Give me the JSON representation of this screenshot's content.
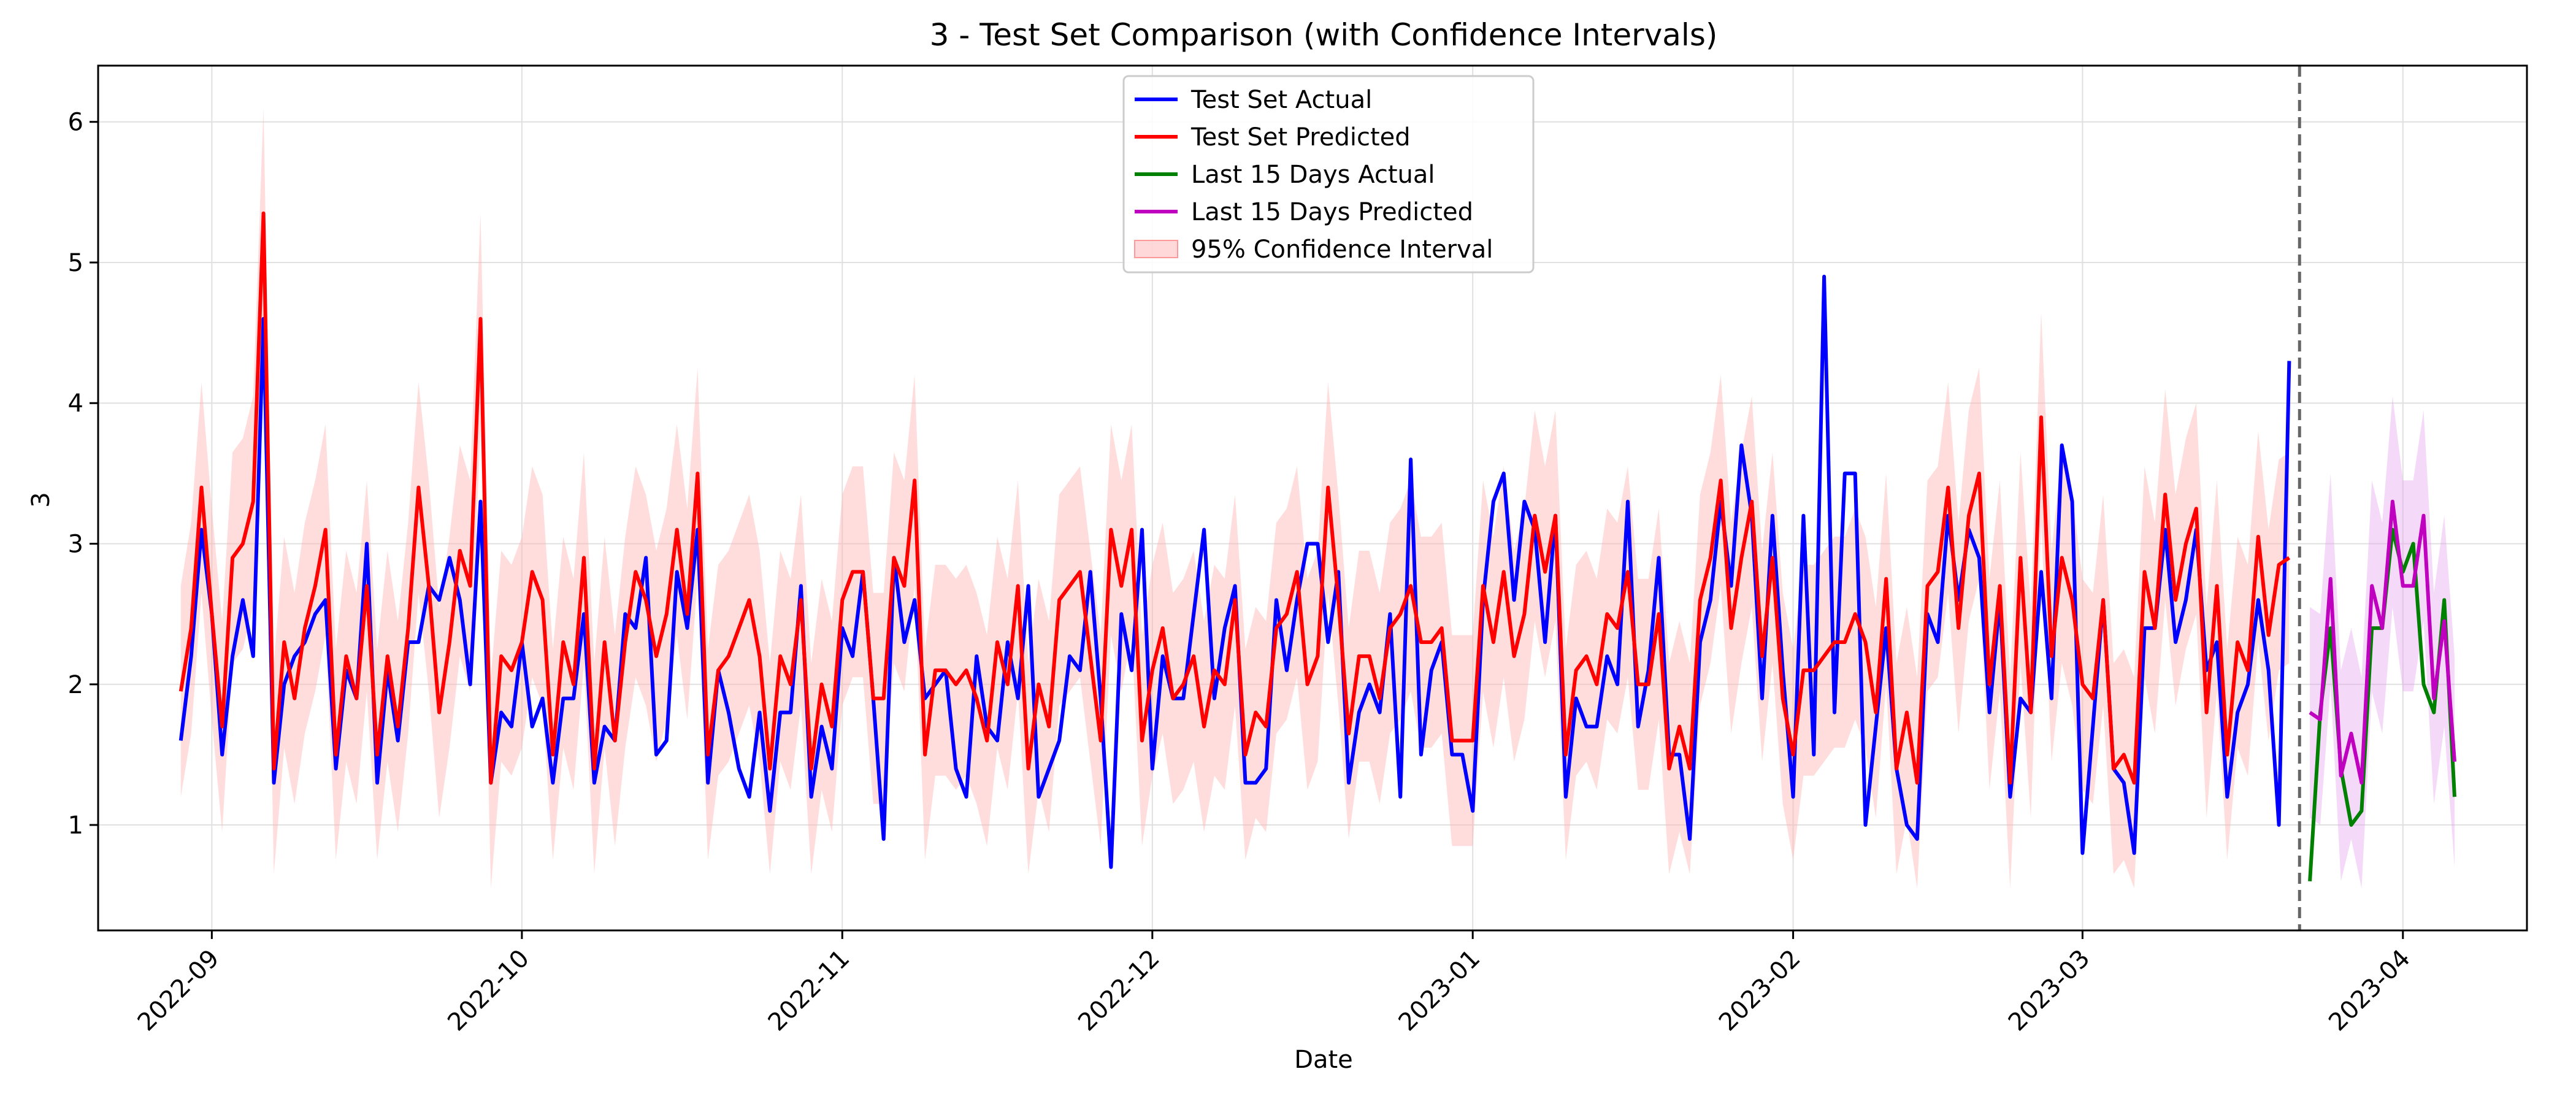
{
  "chart_data": {
    "type": "line",
    "title": "3 - Test Set Comparison (with Confidence Intervals)",
    "xlabel": "Date",
    "ylabel": "3",
    "x_ticks": [
      "2022-09",
      "2022-10",
      "2022-11",
      "2022-12",
      "2023-01",
      "2023-02",
      "2023-03",
      "2023-04"
    ],
    "y_ticks": [
      "1",
      "2",
      "3",
      "4",
      "5",
      "6"
    ],
    "xlim": [
      "2022-08-21",
      "2023-04-13"
    ],
    "ylim": [
      0.25,
      6.4
    ],
    "grid": true,
    "legend_position": "top-center",
    "vline": {
      "date": "2023-03-22",
      "style": "dashed",
      "color": "#666666"
    },
    "series": [
      {
        "name": "Test Set Actual",
        "color": "#0000ff",
        "start_date": "2022-08-29",
        "values": [
          1.6,
          2.2,
          3.1,
          2.5,
          1.5,
          2.2,
          2.6,
          2.2,
          4.6,
          1.3,
          2.0,
          2.2,
          2.3,
          2.5,
          2.6,
          1.4,
          2.1,
          1.9,
          3.0,
          1.3,
          2.1,
          1.6,
          2.3,
          2.3,
          2.7,
          2.6,
          2.9,
          2.6,
          2.0,
          3.3,
          1.3,
          1.8,
          1.7,
          2.3,
          1.7,
          1.9,
          1.3,
          1.9,
          1.9,
          2.5,
          1.3,
          1.7,
          1.6,
          2.5,
          2.4,
          2.9,
          1.5,
          1.6,
          2.8,
          2.4,
          3.1,
          1.3,
          2.1,
          1.8,
          1.4,
          1.2,
          1.8,
          1.1,
          1.8,
          1.8,
          2.7,
          1.2,
          1.7,
          1.4,
          2.4,
          2.2,
          2.8,
          1.9,
          0.9,
          2.9,
          2.3,
          2.6,
          1.9,
          2.0,
          2.1,
          1.4,
          1.2,
          2.2,
          1.7,
          1.6,
          2.3,
          1.9,
          2.7,
          1.2,
          1.4,
          1.6,
          2.2,
          2.1,
          2.8,
          1.9,
          0.7,
          2.5,
          2.1,
          3.1,
          1.4,
          2.2,
          1.9,
          1.9,
          2.5,
          3.1,
          1.9,
          2.4,
          2.7,
          1.3,
          1.3,
          1.4,
          2.6,
          2.1,
          2.6,
          3.0,
          3.0,
          2.3,
          2.8,
          1.3,
          1.8,
          2.0,
          1.8,
          2.5,
          1.2,
          3.6,
          1.5,
          2.1,
          2.3,
          1.5,
          1.5,
          1.1,
          2.6,
          3.3,
          3.5,
          2.6,
          3.3,
          3.1,
          2.3,
          3.2,
          1.2,
          1.9,
          1.7,
          1.7,
          2.2,
          2.0,
          3.3,
          1.7,
          2.1,
          2.9,
          1.5,
          1.5,
          0.9,
          2.3,
          2.6,
          3.3,
          2.7,
          3.7,
          3.2,
          1.9,
          3.2,
          2.1,
          1.2,
          3.2,
          1.5,
          4.9,
          1.8,
          3.5,
          3.5,
          1.0,
          1.7,
          2.4,
          1.4,
          1.0,
          0.9,
          2.5,
          2.3,
          3.2,
          2.6,
          3.1,
          2.9,
          1.8,
          2.6,
          1.2,
          1.9,
          1.8,
          2.8,
          1.9,
          3.7,
          3.3,
          0.8,
          1.7,
          2.6,
          1.4,
          1.3,
          0.8,
          2.4,
          2.4,
          3.1,
          2.3,
          2.6,
          3.1,
          2.1,
          2.3,
          1.2,
          1.8,
          2.0,
          2.6,
          2.1,
          1.0,
          4.3
        ]
      },
      {
        "name": "Test Set Predicted",
        "color": "#ff0000",
        "start_date": "2022-08-29",
        "values": [
          1.95,
          2.4,
          3.4,
          2.5,
          1.7,
          2.9,
          3.0,
          3.3,
          5.35,
          1.4,
          2.3,
          1.9,
          2.4,
          2.7,
          3.1,
          1.5,
          2.2,
          1.9,
          2.7,
          1.5,
          2.2,
          1.7,
          2.4,
          3.4,
          2.7,
          1.8,
          2.3,
          2.95,
          2.7,
          4.6,
          1.3,
          2.2,
          2.1,
          2.3,
          2.8,
          2.6,
          1.5,
          2.3,
          2.0,
          2.9,
          1.4,
          2.3,
          1.6,
          2.3,
          2.8,
          2.6,
          2.2,
          2.5,
          3.1,
          2.5,
          3.5,
          1.5,
          2.1,
          2.2,
          2.4,
          2.6,
          2.2,
          1.4,
          2.2,
          2.0,
          2.6,
          1.4,
          2.0,
          1.7,
          2.6,
          2.8,
          2.8,
          1.9,
          1.9,
          2.9,
          2.7,
          3.45,
          1.5,
          2.1,
          2.1,
          2.0,
          2.1,
          1.9,
          1.6,
          2.3,
          2.0,
          2.7,
          1.4,
          2.0,
          1.7,
          2.6,
          2.7,
          2.8,
          2.2,
          1.6,
          3.1,
          2.7,
          3.1,
          1.6,
          2.1,
          2.4,
          1.9,
          2.0,
          2.2,
          1.7,
          2.1,
          2.0,
          2.6,
          1.5,
          1.8,
          1.7,
          2.4,
          2.5,
          2.8,
          2.0,
          2.2,
          3.4,
          2.6,
          1.65,
          2.2,
          2.2,
          1.9,
          2.4,
          2.5,
          2.7,
          2.3,
          2.3,
          2.4,
          1.6,
          1.6,
          1.6,
          2.7,
          2.3,
          2.8,
          2.2,
          2.5,
          3.2,
          2.8,
          3.2,
          1.5,
          2.1,
          2.2,
          2.0,
          2.5,
          2.4,
          2.8,
          2.0,
          2.0,
          2.5,
          1.4,
          1.7,
          1.4,
          2.6,
          2.9,
          3.45,
          2.4,
          2.9,
          3.3,
          2.2,
          2.9,
          1.9,
          1.5,
          2.1,
          2.1,
          2.2,
          2.3,
          2.3,
          2.5,
          2.3,
          1.8,
          2.75,
          1.4,
          1.8,
          1.3,
          2.7,
          2.8,
          3.4,
          2.4,
          3.2,
          3.5,
          2.0,
          2.7,
          1.3,
          2.9,
          1.8,
          3.9,
          2.2,
          2.9,
          2.6,
          2.0,
          1.9,
          2.6,
          1.4,
          1.5,
          1.3,
          2.8,
          2.4,
          3.35,
          2.6,
          3.0,
          3.25,
          1.8,
          2.7,
          1.5,
          2.3,
          2.1,
          3.05,
          2.35,
          2.85,
          2.9
        ]
      },
      {
        "name": "Last 15 Days Actual",
        "color": "#008000",
        "start_date": "2023-03-23",
        "values": [
          0.6,
          1.8,
          2.4,
          1.4,
          1.0,
          1.1,
          2.4,
          2.4,
          3.1,
          2.8,
          3.0,
          2.0,
          1.8,
          2.6,
          1.2
        ]
      },
      {
        "name": "Last 15 Days Predicted",
        "color": "#bf00bf",
        "start_date": "2023-03-23",
        "values": [
          1.8,
          1.75,
          2.75,
          1.35,
          1.65,
          1.3,
          2.7,
          2.4,
          3.3,
          2.7,
          2.7,
          3.2,
          1.9,
          2.45,
          1.45
        ]
      }
    ],
    "confidence_interval": {
      "name": "95% Confidence Interval",
      "color": "#ffb3b3",
      "margin": 0.75
    }
  }
}
